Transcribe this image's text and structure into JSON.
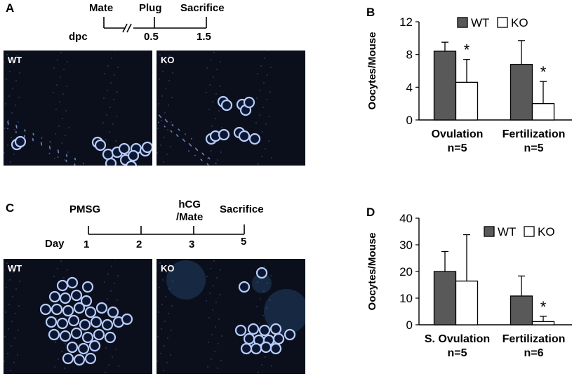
{
  "panels": {
    "a": {
      "letter": "A",
      "timeline": {
        "labels": [
          "Mate",
          "Plug",
          "Sacrifice"
        ],
        "axis_label": "dpc",
        "ticks": [
          "0.5",
          "1.5"
        ]
      },
      "images": [
        {
          "label": "WT"
        },
        {
          "label": "KO"
        }
      ]
    },
    "b": {
      "letter": "B"
    },
    "c": {
      "letter": "C",
      "timeline": {
        "labels": [
          "PMSG",
          "hCG\n/Mate",
          "Sacrifice"
        ],
        "axis_label": "Day",
        "ticks": [
          "1",
          "2",
          "3",
          "5"
        ]
      },
      "images": [
        {
          "label": "WT"
        },
        {
          "label": "KO"
        }
      ]
    },
    "d": {
      "letter": "D"
    }
  },
  "colors": {
    "wt_bar": "#595959",
    "ko_bar": "#ffffff",
    "micro_bg": "#0b0f1c",
    "cell": "#b7cdfb"
  },
  "chart_data": [
    {
      "type": "bar",
      "panel": "B",
      "ylabel": "Oocytes/Mouse",
      "ylim": [
        0,
        12
      ],
      "yticks": [
        0,
        4,
        8,
        12
      ],
      "categories": [
        "Ovulation\nn=5",
        "Fertilization\nn=5"
      ],
      "series": [
        {
          "name": "WT",
          "values": [
            8.4,
            6.8
          ],
          "errors": [
            1.1,
            2.9
          ],
          "color": "#595959"
        },
        {
          "name": "KO",
          "values": [
            4.6,
            2.0
          ],
          "errors": [
            2.8,
            2.7
          ],
          "color": "#ffffff"
        }
      ],
      "significance": [
        "*",
        "*"
      ],
      "legend": "top-right",
      "grid": false
    },
    {
      "type": "bar",
      "panel": "D",
      "ylabel": "Oocytes/Mouse",
      "ylim": [
        0,
        40
      ],
      "yticks": [
        0,
        10,
        20,
        30,
        40
      ],
      "categories": [
        "S. Ovulation\nn=5",
        "Fertilization\nn=6"
      ],
      "series": [
        {
          "name": "WT",
          "values": [
            20,
            10.8
          ],
          "errors": [
            7.5,
            7.5
          ],
          "color": "#595959"
        },
        {
          "name": "KO",
          "values": [
            16.4,
            1.2
          ],
          "errors": [
            17.4,
            2.0
          ],
          "color": "#ffffff"
        }
      ],
      "significance": [
        "",
        "*"
      ],
      "legend": "top-right",
      "grid": false
    }
  ]
}
